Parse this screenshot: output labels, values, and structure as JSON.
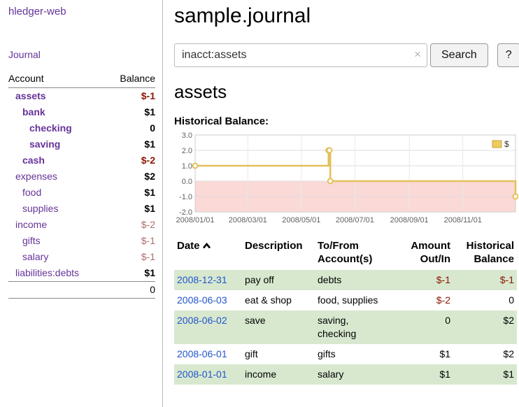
{
  "sidebar": {
    "app_title": "hledger-web",
    "journal_link": "Journal",
    "accounts": {
      "header_account": "Account",
      "header_balance": "Balance",
      "rows": [
        {
          "name": "assets",
          "balance": "$-1",
          "indent": 0,
          "style": "bold",
          "balance_style": "neg-strong"
        },
        {
          "name": "bank",
          "balance": "$1",
          "indent": 1,
          "style": "bold",
          "balance_style": "pos-strong"
        },
        {
          "name": "checking",
          "balance": "0",
          "indent": 2,
          "style": "bold",
          "balance_style": "pos-strong"
        },
        {
          "name": "saving",
          "balance": "$1",
          "indent": 2,
          "style": "bold",
          "balance_style": "pos-strong"
        },
        {
          "name": "cash",
          "balance": "$-2",
          "indent": 1,
          "style": "bold",
          "balance_style": "neg-strong"
        },
        {
          "name": "expenses",
          "balance": "$2",
          "indent": 0,
          "style": "normal",
          "balance_style": "pos-strong"
        },
        {
          "name": "food",
          "balance": "$1",
          "indent": 1,
          "style": "normal",
          "balance_style": "pos-strong"
        },
        {
          "name": "supplies",
          "balance": "$1",
          "indent": 1,
          "style": "normal",
          "balance_style": "pos-strong"
        },
        {
          "name": "income",
          "balance": "$-2",
          "indent": 0,
          "style": "normal",
          "balance_style": "neg-soft"
        },
        {
          "name": "gifts",
          "balance": "$-1",
          "indent": 1,
          "style": "normal",
          "balance_style": "neg-soft"
        },
        {
          "name": "salary",
          "balance": "$-1",
          "indent": 1,
          "style": "normal",
          "balance_style": "neg-soft"
        },
        {
          "name": "liabilities:debts",
          "balance": "$1",
          "indent": 0,
          "style": "normal",
          "balance_style": "pos-strong"
        }
      ],
      "total": "0"
    }
  },
  "main": {
    "title": "sample.journal",
    "search": {
      "value": "inacct:assets",
      "clear": "×",
      "button": "Search",
      "help": "?"
    },
    "account_heading": "assets",
    "chart_title": "Historical Balance:"
  },
  "chart_data": {
    "type": "line",
    "step": true,
    "title": "Historical Balance",
    "legend": [
      {
        "label": "$",
        "color": "#eecb5e"
      }
    ],
    "legend_position": "top-right",
    "grid": true,
    "ylim": [
      -2.0,
      3.0
    ],
    "yticks": [
      "3.0",
      "2.0",
      "1.0",
      "0.0",
      "-1.0",
      "-2.0"
    ],
    "x_domain": [
      "2008-01-01",
      "2008-12-31"
    ],
    "x_domain_days": [
      0,
      365
    ],
    "xticks": [
      {
        "label": "2008/01/01",
        "day": 0
      },
      {
        "label": "2008/03/01",
        "day": 60
      },
      {
        "label": "2008/05/01",
        "day": 121
      },
      {
        "label": "2008/07/01",
        "day": 182
      },
      {
        "label": "2008/09/01",
        "day": 244
      },
      {
        "label": "2008/11/01",
        "day": 305
      }
    ],
    "series": [
      {
        "name": "$",
        "points": [
          {
            "date": "2008-01-01",
            "day": 0,
            "value": 1
          },
          {
            "date": "2008-06-01",
            "day": 152,
            "value": 2
          },
          {
            "date": "2008-06-02",
            "day": 153,
            "value": 2
          },
          {
            "date": "2008-06-03",
            "day": 154,
            "value": 0
          },
          {
            "date": "2008-12-31",
            "day": 365,
            "value": -1
          }
        ]
      }
    ],
    "line_color": "#e3c05a",
    "negative_region_fill": "#fbd9d6"
  },
  "register": {
    "headers": {
      "date": "Date",
      "sort_icon": "chevron-up",
      "description": "Description",
      "account": "To/From Account(s)",
      "amount": "Amount Out/In",
      "balance": "Historical Balance"
    },
    "rows": [
      {
        "date": "2008-12-31",
        "description": "pay off",
        "accounts": [
          "debts"
        ],
        "amount": "$-1",
        "balance": "$-1",
        "amount_neg": true,
        "balance_neg": true,
        "shaded": true
      },
      {
        "date": "2008-06-03",
        "description": "eat & shop",
        "accounts": [
          "food, supplies"
        ],
        "amount": "$-2",
        "balance": "0",
        "amount_neg": true,
        "balance_neg": false,
        "shaded": false
      },
      {
        "date": "2008-06-02",
        "description": "save",
        "accounts": [
          "saving,",
          "checking"
        ],
        "amount": "0",
        "balance": "$2",
        "amount_neg": false,
        "balance_neg": false,
        "shaded": true
      },
      {
        "date": "2008-06-01",
        "description": "gift",
        "accounts": [
          "gifts"
        ],
        "amount": "$1",
        "balance": "$2",
        "amount_neg": false,
        "balance_neg": false,
        "shaded": false
      },
      {
        "date": "2008-01-01",
        "description": "income",
        "accounts": [
          "salary"
        ],
        "amount": "$1",
        "balance": "$1",
        "amount_neg": false,
        "balance_neg": false,
        "shaded": true
      }
    ]
  },
  "colors": {
    "link_purple": "#663399",
    "neg_strong": "#8b1500",
    "neg_soft": "#b36b6b",
    "date_blue": "#2255cc",
    "row_green": "#d7e8cf"
  }
}
